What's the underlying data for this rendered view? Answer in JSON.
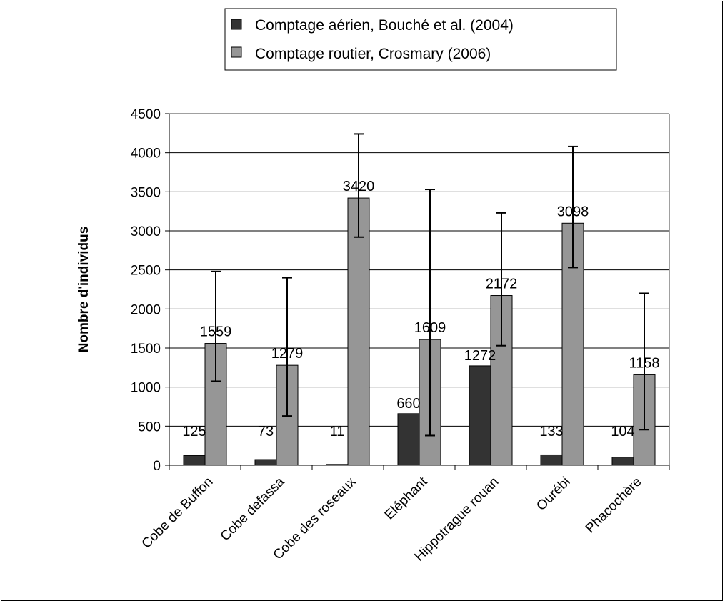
{
  "chart_data": {
    "type": "bar",
    "ylabel": "Nombre d'individus",
    "xlabel": "",
    "ylim": [
      0,
      4500
    ],
    "yticks": [
      0,
      500,
      1000,
      1500,
      2000,
      2500,
      3000,
      3500,
      4000,
      4500
    ],
    "grid": "horizontal",
    "legend_position": "top",
    "categories": [
      "Cobe de Buffon",
      "Cobe defassa",
      "Cobe des roseaux",
      "Eléphant",
      "Hippotrague rouan",
      "Ourébi",
      "Phacochère"
    ],
    "series": [
      {
        "name": "Comptage aérien, Bouché et al. (2004)",
        "color": "#333333",
        "values": [
          125,
          73,
          11,
          660,
          1272,
          133,
          104
        ],
        "labels": [
          "125",
          "73",
          "11",
          "660",
          "1272",
          "133",
          "104"
        ]
      },
      {
        "name": "Comptage routier, Crosmary (2006)",
        "color": "#969696",
        "values": [
          1559,
          1279,
          3420,
          1609,
          2172,
          3098,
          1158
        ],
        "labels": [
          "1559",
          "1279",
          "3420",
          "1609",
          "2172",
          "3098",
          "1158"
        ],
        "error_low": [
          1075,
          630,
          2920,
          380,
          1530,
          2530,
          455
        ],
        "error_high": [
          2480,
          2400,
          4240,
          3530,
          3230,
          4080,
          2200
        ]
      }
    ]
  }
}
